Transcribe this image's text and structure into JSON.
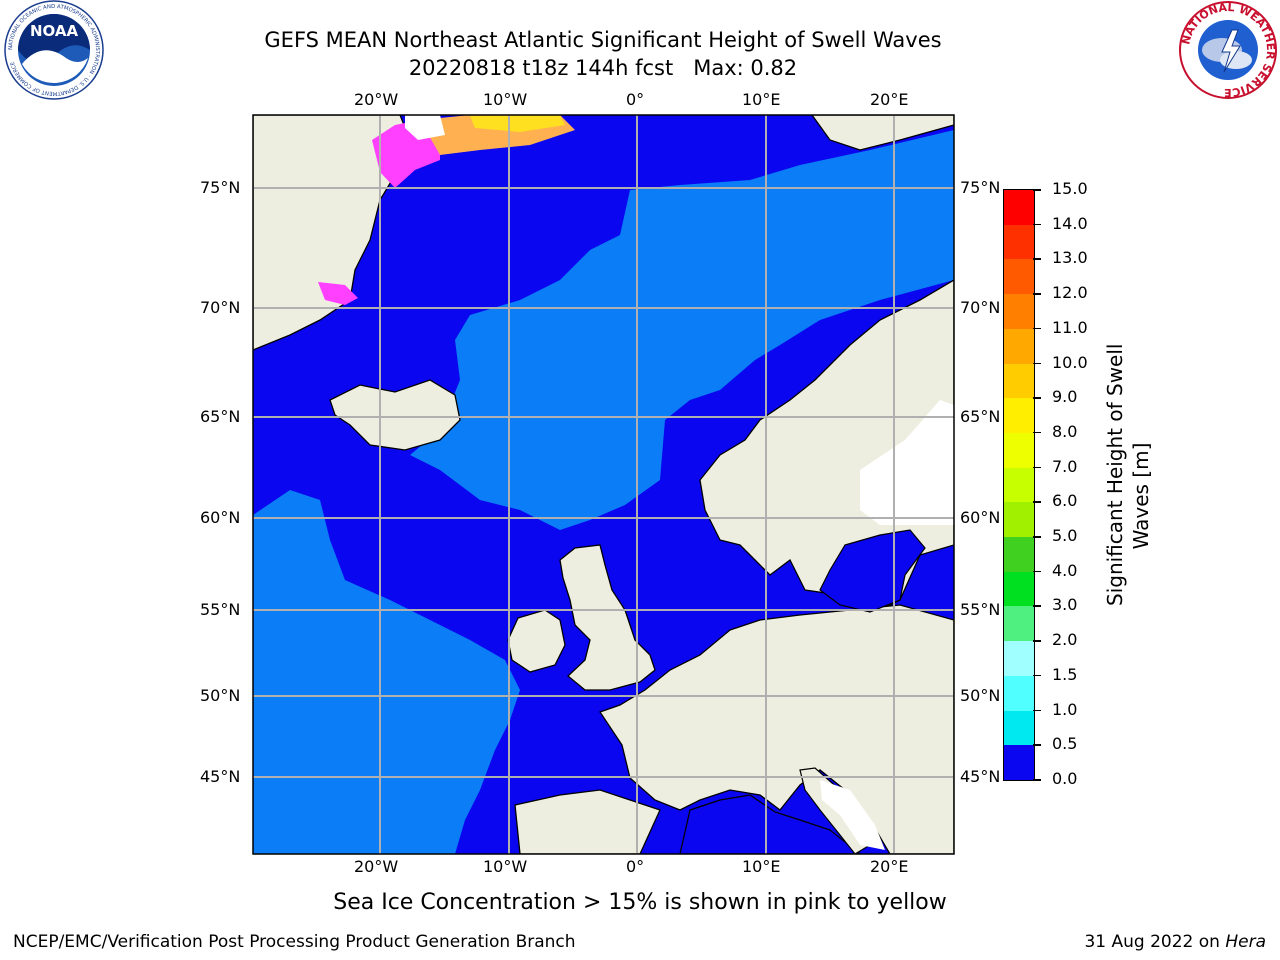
{
  "title": {
    "line1": "GEFS MEAN Northeast Atlantic Significant Height of Swell Waves",
    "line2": "20220818 t18z 144h fcst   Max: 0.82"
  },
  "map": {
    "lon_top_labels": [
      "20°W",
      "10°W",
      "0°",
      "10°E",
      "20°E"
    ],
    "lon_bottom_labels": [
      "20°W",
      "10°W",
      "0°",
      "10°E",
      "20°E"
    ],
    "lat_left_labels": [
      "75°N",
      "70°N",
      "65°N",
      "60°N",
      "55°N",
      "50°N",
      "45°N"
    ],
    "lat_right_labels": [
      "75°N",
      "70°N",
      "65°N",
      "60°N",
      "55°N",
      "50°N",
      "45°N"
    ],
    "colors": {
      "ocean_low": "#0a06f0",
      "ocean_mid": "#0a7df7",
      "land": "#eeeee0",
      "ice_pink": "#ff40ff",
      "ice_orange": "#ffb050",
      "ice_yellow": "#ffe020",
      "grid": "#b0b0b0"
    }
  },
  "colorbar": {
    "title_line1": "Significant Height of Swell",
    "title_line2": "Waves [m]",
    "ticks": [
      "15.0",
      "14.0",
      "13.0",
      "12.0",
      "11.0",
      "10.0",
      "9.0",
      "8.0",
      "7.0",
      "6.0",
      "5.0",
      "4.0",
      "3.0",
      "2.0",
      "1.5",
      "1.0",
      "0.5",
      "0.0"
    ],
    "colors": [
      "#ff0000",
      "#ff3000",
      "#ff5a00",
      "#ff8000",
      "#ffa800",
      "#ffcc00",
      "#ffee00",
      "#eeff00",
      "#c8ff00",
      "#a0f000",
      "#40d020",
      "#00e020",
      "#50f080",
      "#a0ffff",
      "#50ffff",
      "#00e8f0",
      "#0a7df7",
      "#0a06f0"
    ]
  },
  "caption": "Sea Ice Concentration > 15% is shown in pink to yellow",
  "footer": {
    "left": "NCEP/EMC/Verification Post Processing Product Generation Branch",
    "right_date": "31 Aug 2022 on ",
    "right_host": "Hera"
  },
  "logos": {
    "noaa_text": "NOAA",
    "noaa_ring": "NATIONAL OCEANIC AND ATMOSPHERIC ADMINISTRATION · U.S. DEPARTMENT OF COMMERCE",
    "nws_ring": "NATIONAL WEATHER SERVICE"
  }
}
